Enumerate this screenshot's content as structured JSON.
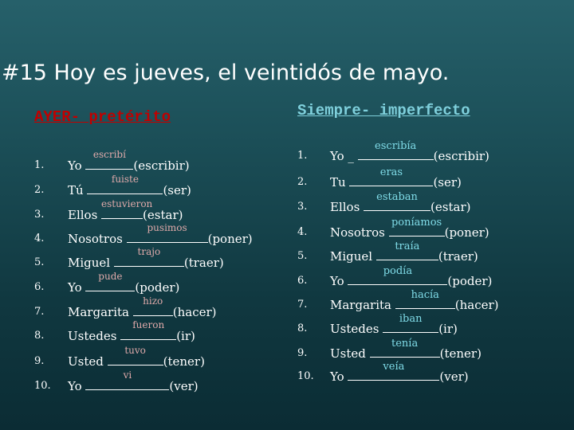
{
  "title": "#15 Hoy es jueves, el veintidós de mayo.",
  "left_heading": "AYER- pretérito",
  "right_heading": "Siempre- imperfecto",
  "left_rows": [
    {
      "num": "1.",
      "pre": "Yo",
      "answer": "escribí",
      "verb": "(escribir)"
    },
    {
      "num": "2.",
      "pre": "Tú",
      "answer": "fuiste",
      "verb": "(ser)"
    },
    {
      "num": "3.",
      "pre": "Ellos",
      "answer": "estuvieron",
      "verb": "(estar)"
    },
    {
      "num": "4.",
      "pre": "Nosotros",
      "answer": "pusimos",
      "verb": "(poner)"
    },
    {
      "num": "5.",
      "pre": "Miguel",
      "answer": "trajo",
      "verb": "(traer)"
    },
    {
      "num": "6.",
      "pre": "Yo",
      "answer": "pude",
      "verb": "(poder)"
    },
    {
      "num": "7.",
      "pre": "Margarita",
      "answer": "hizo",
      "verb": "(hacer)"
    },
    {
      "num": "8.",
      "pre": "Ustedes",
      "answer": "fueron",
      "verb": "(ir)"
    },
    {
      "num": "9.",
      "pre": "Usted",
      "answer": "tuvo",
      "verb": "(tener)"
    },
    {
      "num": "10.",
      "pre": "Yo",
      "answer": "vi",
      "verb": "(ver)"
    }
  ],
  "right_rows": [
    {
      "num": "1.",
      "pre": "Yo _",
      "answer": "escribía",
      "verb": "(escribir)"
    },
    {
      "num": "2.",
      "pre": "Tu",
      "answer": "eras",
      "verb": "(ser)"
    },
    {
      "num": "3.",
      "pre": "Ellos",
      "answer": "estaban",
      "verb": "(estar)"
    },
    {
      "num": "4.",
      "pre": "Nosotros",
      "answer": "poníamos",
      "verb": "(poner)"
    },
    {
      "num": "5.",
      "pre": "Miguel",
      "answer": "traía",
      "verb": "(traer)"
    },
    {
      "num": "6.",
      "pre": "Yo",
      "answer": "podía",
      "verb": "(poder)"
    },
    {
      "num": "7.",
      "pre": "Margarita",
      "answer": "hacía",
      "verb": "(hacer)"
    },
    {
      "num": "8.",
      "pre": "Ustedes",
      "answer": "iban",
      "verb": "(ir)"
    },
    {
      "num": "9.",
      "pre": "Usted",
      "answer": "tenía",
      "verb": "(tener)"
    },
    {
      "num": "10.",
      "pre": "Yo",
      "answer": "veía",
      "verb": "(ver)"
    }
  ]
}
